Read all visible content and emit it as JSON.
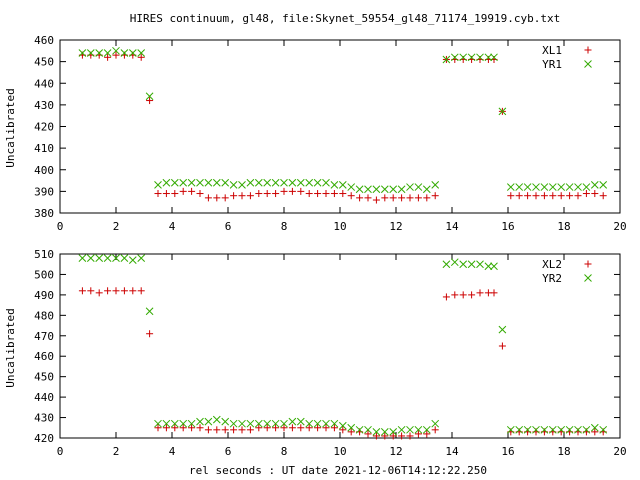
{
  "title": "HIRES continuum, gl48, file:Skynet_59554_gl48_71174_19919.cyb.txt",
  "xlabel": "rel seconds : UT date 2021-12-06T14:12:22.250",
  "chart_data": [
    {
      "type": "scatter",
      "ylabel": "Uncalibrated",
      "xlim": [
        0,
        20
      ],
      "ylim": [
        380,
        460
      ],
      "xticks": [
        0,
        2,
        4,
        6,
        8,
        10,
        12,
        14,
        16,
        18,
        20
      ],
      "yticks": [
        380,
        390,
        400,
        410,
        420,
        430,
        440,
        450,
        460
      ],
      "legend_position": "top-right",
      "series": [
        {
          "name": "XL1",
          "marker": "plus",
          "color": "#cc0000",
          "x": [
            0.8,
            1.1,
            1.4,
            1.7,
            2.0,
            2.3,
            2.6,
            2.9,
            3.2,
            3.5,
            3.8,
            4.1,
            4.4,
            4.7,
            5.0,
            5.3,
            5.6,
            5.9,
            6.2,
            6.5,
            6.8,
            7.1,
            7.4,
            7.7,
            8.0,
            8.3,
            8.6,
            8.9,
            9.2,
            9.5,
            9.8,
            10.1,
            10.4,
            10.7,
            11.0,
            11.3,
            11.6,
            11.9,
            12.2,
            12.5,
            12.8,
            13.1,
            13.4,
            13.8,
            14.1,
            14.4,
            14.7,
            15.0,
            15.3,
            15.5,
            15.8,
            16.1,
            16.4,
            16.7,
            17.0,
            17.3,
            17.6,
            17.9,
            18.2,
            18.5,
            18.8,
            19.1,
            19.4
          ],
          "y": [
            453,
            453,
            453,
            452,
            453,
            453,
            453,
            452,
            432,
            389,
            389,
            389,
            390,
            390,
            389,
            387,
            387,
            387,
            388,
            388,
            388,
            389,
            389,
            389,
            390,
            390,
            390,
            389,
            389,
            389,
            389,
            389,
            388,
            387,
            387,
            386,
            387,
            387,
            387,
            387,
            387,
            387,
            388,
            451,
            451,
            451,
            451,
            451,
            451,
            451,
            427,
            388,
            388,
            388,
            388,
            388,
            388,
            388,
            388,
            388,
            389,
            389,
            388
          ]
        },
        {
          "name": "YR1",
          "marker": "cross",
          "color": "#33aa00",
          "x": [
            0.8,
            1.1,
            1.4,
            1.7,
            2.0,
            2.3,
            2.6,
            2.9,
            3.2,
            3.5,
            3.8,
            4.1,
            4.4,
            4.7,
            5.0,
            5.3,
            5.6,
            5.9,
            6.2,
            6.5,
            6.8,
            7.1,
            7.4,
            7.7,
            8.0,
            8.3,
            8.6,
            8.9,
            9.2,
            9.5,
            9.8,
            10.1,
            10.4,
            10.7,
            11.0,
            11.3,
            11.6,
            11.9,
            12.2,
            12.5,
            12.8,
            13.1,
            13.4,
            13.8,
            14.1,
            14.4,
            14.7,
            15.0,
            15.3,
            15.5,
            15.8,
            16.1,
            16.4,
            16.7,
            17.0,
            17.3,
            17.6,
            17.9,
            18.2,
            18.5,
            18.8,
            19.1,
            19.4
          ],
          "y": [
            454,
            454,
            454,
            454,
            455,
            454,
            454,
            454,
            434,
            393,
            394,
            394,
            394,
            394,
            394,
            394,
            394,
            394,
            393,
            393,
            394,
            394,
            394,
            394,
            394,
            394,
            394,
            394,
            394,
            394,
            393,
            393,
            392,
            391,
            391,
            391,
            391,
            391,
            391,
            392,
            392,
            391,
            393,
            451,
            452,
            452,
            452,
            452,
            452,
            452,
            427,
            392,
            392,
            392,
            392,
            392,
            392,
            392,
            392,
            392,
            392,
            393,
            393
          ]
        }
      ]
    },
    {
      "type": "scatter",
      "ylabel": "Uncalibrated",
      "xlim": [
        0,
        20
      ],
      "ylim": [
        420,
        510
      ],
      "xticks": [
        0,
        2,
        4,
        6,
        8,
        10,
        12,
        14,
        16,
        18,
        20
      ],
      "yticks": [
        420,
        430,
        440,
        450,
        460,
        470,
        480,
        490,
        500,
        510
      ],
      "legend_position": "top-right",
      "series": [
        {
          "name": "XL2",
          "marker": "plus",
          "color": "#cc0000",
          "x": [
            0.8,
            1.1,
            1.4,
            1.7,
            2.0,
            2.3,
            2.6,
            2.9,
            3.2,
            3.5,
            3.8,
            4.1,
            4.4,
            4.7,
            5.0,
            5.3,
            5.6,
            5.9,
            6.2,
            6.5,
            6.8,
            7.1,
            7.4,
            7.7,
            8.0,
            8.3,
            8.6,
            8.9,
            9.2,
            9.5,
            9.8,
            10.1,
            10.4,
            10.7,
            11.0,
            11.3,
            11.6,
            11.9,
            12.2,
            12.5,
            12.8,
            13.1,
            13.4,
            13.8,
            14.1,
            14.4,
            14.7,
            15.0,
            15.3,
            15.5,
            15.8,
            16.1,
            16.4,
            16.7,
            17.0,
            17.3,
            17.6,
            17.9,
            18.2,
            18.5,
            18.8,
            19.1,
            19.4
          ],
          "y": [
            492,
            492,
            491,
            492,
            492,
            492,
            492,
            492,
            471,
            425,
            425,
            425,
            425,
            425,
            425,
            424,
            424,
            424,
            424,
            424,
            424,
            425,
            425,
            425,
            425,
            425,
            425,
            425,
            425,
            425,
            425,
            424,
            423,
            423,
            422,
            421,
            421,
            421,
            421,
            421,
            422,
            422,
            424,
            489,
            490,
            490,
            490,
            491,
            491,
            491,
            465,
            423,
            423,
            423,
            423,
            423,
            423,
            423,
            423,
            423,
            423,
            423,
            423
          ]
        },
        {
          "name": "YR2",
          "marker": "cross",
          "color": "#33aa00",
          "x": [
            0.8,
            1.1,
            1.4,
            1.7,
            2.0,
            2.3,
            2.6,
            2.9,
            3.2,
            3.5,
            3.8,
            4.1,
            4.4,
            4.7,
            5.0,
            5.3,
            5.6,
            5.9,
            6.2,
            6.5,
            6.8,
            7.1,
            7.4,
            7.7,
            8.0,
            8.3,
            8.6,
            8.9,
            9.2,
            9.5,
            9.8,
            10.1,
            10.4,
            10.7,
            11.0,
            11.3,
            11.6,
            11.9,
            12.2,
            12.5,
            12.8,
            13.1,
            13.4,
            13.8,
            14.1,
            14.4,
            14.7,
            15.0,
            15.3,
            15.5,
            15.8,
            16.1,
            16.4,
            16.7,
            17.0,
            17.3,
            17.6,
            17.9,
            18.2,
            18.5,
            18.8,
            19.1,
            19.4
          ],
          "y": [
            508,
            508,
            508,
            508,
            508,
            508,
            507,
            508,
            482,
            427,
            427,
            427,
            427,
            427,
            428,
            428,
            429,
            428,
            427,
            427,
            427,
            427,
            427,
            427,
            427,
            428,
            428,
            427,
            427,
            427,
            427,
            426,
            425,
            424,
            424,
            423,
            423,
            423,
            424,
            424,
            424,
            424,
            427,
            505,
            506,
            505,
            505,
            505,
            504,
            504,
            473,
            424,
            424,
            424,
            424,
            424,
            424,
            424,
            424,
            424,
            424,
            425,
            424
          ]
        }
      ]
    }
  ]
}
